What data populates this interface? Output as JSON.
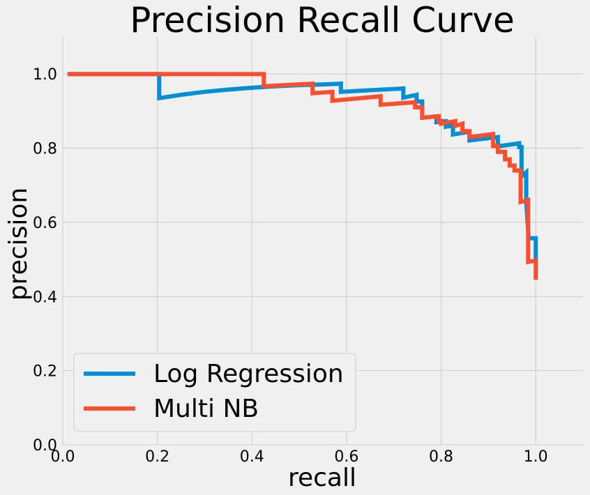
{
  "chart_data": {
    "type": "line",
    "title": "Precision Recall Curve",
    "xlabel": "recall",
    "ylabel": "precision",
    "xlim": [
      0.0,
      1.1
    ],
    "ylim": [
      0.0,
      1.1
    ],
    "xticks": [
      "0.0",
      "0.2",
      "0.4",
      "0.6",
      "0.8",
      "1.0"
    ],
    "yticks": [
      "0.0",
      "0.2",
      "0.4",
      "0.6",
      "0.8",
      "1.0"
    ],
    "grid": true,
    "legend_position": "lower-left",
    "series": [
      {
        "name": "Log Regression",
        "color": "#008fd5",
        "points": [
          [
            0.01,
            1.0
          ],
          [
            0.204,
            1.0
          ],
          [
            0.204,
            0.935
          ],
          [
            0.25,
            0.944
          ],
          [
            0.3,
            0.952
          ],
          [
            0.35,
            0.958
          ],
          [
            0.4,
            0.963
          ],
          [
            0.45,
            0.967
          ],
          [
            0.5,
            0.97
          ],
          [
            0.55,
            0.972
          ],
          [
            0.588,
            0.974
          ],
          [
            0.588,
            0.952
          ],
          [
            0.72,
            0.961
          ],
          [
            0.72,
            0.936
          ],
          [
            0.748,
            0.944
          ],
          [
            0.748,
            0.926
          ],
          [
            0.76,
            0.926
          ],
          [
            0.76,
            0.882
          ],
          [
            0.79,
            0.886
          ],
          [
            0.79,
            0.87
          ],
          [
            0.81,
            0.873
          ],
          [
            0.81,
            0.858
          ],
          [
            0.825,
            0.861
          ],
          [
            0.825,
            0.837
          ],
          [
            0.86,
            0.844
          ],
          [
            0.86,
            0.821
          ],
          [
            0.92,
            0.83
          ],
          [
            0.92,
            0.805
          ],
          [
            0.965,
            0.813
          ],
          [
            0.965,
            0.803
          ],
          [
            0.97,
            0.803
          ],
          [
            0.97,
            0.724
          ],
          [
            0.98,
            0.735
          ],
          [
            0.98,
            0.655
          ],
          [
            0.985,
            0.557
          ],
          [
            1.0,
            0.557
          ],
          [
            1.0,
            0.5
          ]
        ]
      },
      {
        "name": "Multi NB",
        "color": "#fc4f30",
        "points": [
          [
            0.01,
            1.0
          ],
          [
            0.425,
            1.0
          ],
          [
            0.425,
            0.967
          ],
          [
            0.528,
            0.974
          ],
          [
            0.528,
            0.948
          ],
          [
            0.57,
            0.952
          ],
          [
            0.57,
            0.928
          ],
          [
            0.672,
            0.94
          ],
          [
            0.672,
            0.917
          ],
          [
            0.745,
            0.924
          ],
          [
            0.745,
            0.91
          ],
          [
            0.76,
            0.91
          ],
          [
            0.76,
            0.882
          ],
          [
            0.795,
            0.886
          ],
          [
            0.795,
            0.874
          ],
          [
            0.8,
            0.874
          ],
          [
            0.8,
            0.866
          ],
          [
            0.83,
            0.873
          ],
          [
            0.83,
            0.86
          ],
          [
            0.845,
            0.866
          ],
          [
            0.845,
            0.846
          ],
          [
            0.86,
            0.846
          ],
          [
            0.86,
            0.83
          ],
          [
            0.91,
            0.838
          ],
          [
            0.91,
            0.806
          ],
          [
            0.92,
            0.806
          ],
          [
            0.92,
            0.79
          ],
          [
            0.935,
            0.79
          ],
          [
            0.935,
            0.77
          ],
          [
            0.945,
            0.77
          ],
          [
            0.945,
            0.753
          ],
          [
            0.955,
            0.753
          ],
          [
            0.955,
            0.74
          ],
          [
            0.968,
            0.74
          ],
          [
            0.968,
            0.655
          ],
          [
            0.984,
            0.66
          ],
          [
            0.984,
            0.493
          ],
          [
            1.0,
            0.497
          ],
          [
            1.0,
            0.445
          ]
        ]
      }
    ]
  }
}
